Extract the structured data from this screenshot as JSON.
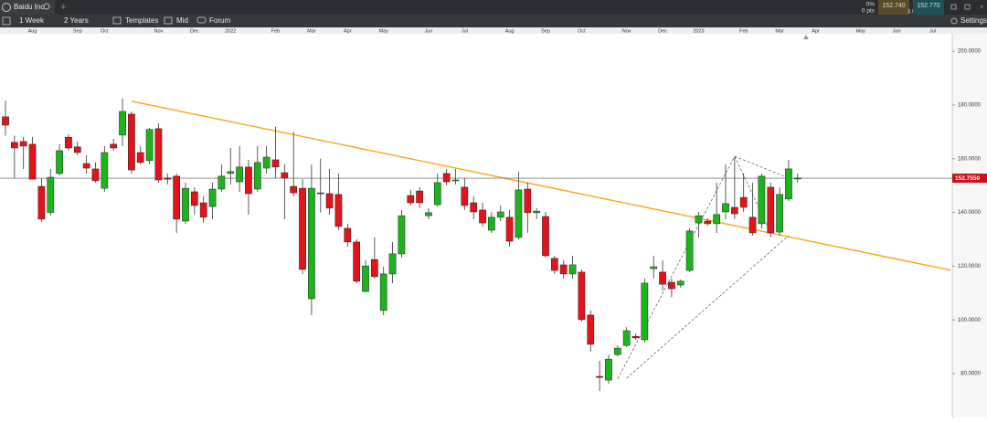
{
  "toolbar": {
    "instrument": "Baidu Inc",
    "interval": "1 Week",
    "range": "2 Years",
    "templates": "Templates",
    "price_mode": "Mid",
    "forum": "Forum",
    "settings": "Settings",
    "change_pct": "0%",
    "change_pts": "0 pts",
    "bid": "152.740",
    "spread": "3.0",
    "ask": "152.770"
  },
  "chart_data": {
    "type": "candlestick",
    "categories": [
      null,
      null,
      null,
      "Aug",
      null,
      null,
      null,
      null,
      "Sep",
      null,
      null,
      "Oct",
      null,
      null,
      null,
      null,
      null,
      "Nov",
      null,
      null,
      null,
      "Dec",
      null,
      null,
      null,
      "2022",
      null,
      null,
      null,
      null,
      "Feb",
      null,
      null,
      null,
      "Mar",
      null,
      null,
      null,
      "Apr",
      null,
      null,
      null,
      "May",
      null,
      null,
      null,
      null,
      "Jun",
      null,
      null,
      null,
      "Jul",
      null,
      null,
      null,
      null,
      "Aug",
      null,
      null,
      null,
      "Sep",
      null,
      null,
      null,
      "Oct",
      null,
      null,
      null,
      null,
      "Nov",
      null,
      null,
      null,
      "Dec",
      null,
      null,
      null,
      "2023",
      null,
      null,
      null,
      null,
      "Feb",
      null,
      null,
      null,
      "Mar",
      null,
      null,
      null,
      "Apr",
      null,
      null,
      null,
      null,
      "May",
      null,
      null,
      null,
      "Jun",
      null,
      null,
      null,
      "Jul",
      null,
      null
    ],
    "open": [
      175.6,
      166.1,
      166.4,
      165.4,
      149.7,
      140.0,
      154.5,
      168.0,
      164.4,
      158.2,
      156.2,
      149.0,
      165.4,
      168.8,
      176.6,
      162.3,
      159.3,
      171.2,
      152.8,
      153.5,
      136.8,
      147.7,
      143.6,
      142.2,
      148.7,
      154.5,
      151.4,
      156.9,
      148.7,
      156.5,
      159.6,
      154.8,
      149.7,
      149.0,
      107.9,
      147.3,
      147.0,
      146.7,
      134.1,
      129.0,
      110.6,
      122.5,
      103.5,
      117.1,
      124.6,
      146.3,
      148.0,
      138.8,
      142.9,
      154.5,
      151.8,
      149.4,
      143.6,
      140.9,
      133.4,
      138.2,
      138.2,
      130.7,
      148.7,
      139.9,
      138.5,
      122.9,
      120.5,
      117.1,
      117.8,
      101.8,
      79.0,
      77.6,
      87.1,
      90.5,
      93.9,
      92.6,
      119.1,
      117.8,
      114.0,
      113.0,
      118.4,
      136.1,
      136.8,
      135.8,
      140.2,
      141.9,
      145.6,
      138.2,
      135.8,
      149.4,
      132.7,
      145.0,
      152.8,
      null,
      null,
      null,
      null,
      null,
      null,
      null,
      null,
      null,
      null,
      null,
      null,
      null,
      null,
      null,
      null,
      null
    ],
    "high": [
      181.7,
      168.6,
      168.1,
      168.1,
      152.8,
      156.2,
      165.4,
      169.1,
      166.4,
      161.3,
      158.6,
      164.7,
      167.4,
      182.4,
      177.6,
      164.7,
      171.5,
      173.2,
      154.5,
      154.5,
      151.1,
      149.4,
      146.0,
      151.1,
      157.9,
      164.0,
      164.7,
      159.6,
      164.7,
      164.7,
      171.9,
      157.9,
      170.0,
      152.4,
      157.9,
      160.0,
      156.2,
      154.5,
      135.8,
      130.0,
      122.2,
      130.7,
      119.8,
      129.0,
      140.9,
      148.4,
      149.4,
      141.6,
      154.5,
      156.2,
      156.2,
      152.8,
      146.0,
      143.6,
      140.2,
      142.6,
      140.9,
      155.2,
      151.1,
      141.6,
      140.2,
      123.9,
      122.2,
      123.9,
      118.8,
      103.5,
      84.8,
      87.1,
      90.5,
      97.3,
      95.0,
      115.4,
      123.9,
      122.2,
      115.4,
      115.0,
      134.1,
      140.2,
      137.8,
      151.1,
      157.9,
      160.6,
      154.5,
      151.1,
      154.5,
      151.1,
      149.4,
      159.6,
      154.5,
      null,
      null,
      null,
      null,
      null,
      null,
      null,
      null,
      null,
      null,
      null,
      null,
      null,
      null,
      null,
      null,
      null
    ],
    "low": [
      168.6,
      152.8,
      156.2,
      152.4,
      136.5,
      138.8,
      153.8,
      163.0,
      161.3,
      154.5,
      151.1,
      147.7,
      163.0,
      164.7,
      154.5,
      157.9,
      157.9,
      151.1,
      150.4,
      132.4,
      135.8,
      139.2,
      136.1,
      137.5,
      147.7,
      150.4,
      147.7,
      139.2,
      147.7,
      154.5,
      152.8,
      137.5,
      146.0,
      117.1,
      101.8,
      140.0,
      139.2,
      133.4,
      127.3,
      113.7,
      110.3,
      115.4,
      101.8,
      113.7,
      123.2,
      142.6,
      141.6,
      137.5,
      142.2,
      150.1,
      150.4,
      140.9,
      137.5,
      134.8,
      132.4,
      136.8,
      127.3,
      130.0,
      132.4,
      137.5,
      123.2,
      117.1,
      115.4,
      115.4,
      99.4,
      88.2,
      73.5,
      76.3,
      86.5,
      89.9,
      92.6,
      91.6,
      115.4,
      111.0,
      108.6,
      112.0,
      117.8,
      130.7,
      135.0,
      132.4,
      137.5,
      137.5,
      140.2,
      131.4,
      134.1,
      130.7,
      131.4,
      144.3,
      151.1,
      null,
      null,
      null,
      null,
      null,
      null,
      null,
      null,
      null,
      null,
      null,
      null,
      null,
      null,
      null,
      null,
      null
    ],
    "close": [
      172.5,
      164.0,
      164.7,
      152.4,
      137.5,
      153.1,
      163.0,
      164.0,
      162.3,
      156.5,
      151.8,
      162.3,
      164.0,
      177.6,
      155.8,
      158.6,
      170.9,
      152.1,
      152.4,
      137.5,
      149.0,
      142.6,
      138.2,
      148.7,
      153.5,
      155.2,
      156.9,
      147.0,
      158.6,
      160.6,
      156.9,
      152.8,
      147.3,
      118.8,
      149.0,
      147.0,
      141.6,
      134.8,
      129.0,
      114.4,
      120.1,
      116.1,
      117.1,
      124.6,
      138.8,
      143.6,
      143.6,
      139.9,
      151.1,
      151.4,
      152.1,
      142.6,
      140.2,
      136.1,
      138.2,
      140.2,
      129.3,
      148.4,
      139.9,
      140.5,
      123.9,
      118.4,
      117.1,
      120.5,
      100.1,
      90.9,
      78.6,
      85.4,
      89.5,
      96.0,
      93.3,
      113.7,
      119.8,
      113.3,
      111.6,
      114.4,
      133.1,
      138.8,
      135.8,
      139.2,
      143.3,
      139.5,
      141.9,
      132.4,
      153.5,
      132.4,
      146.7,
      156.2,
      152.8,
      null,
      null,
      null,
      null,
      null,
      null,
      null,
      null,
      null,
      null,
      null,
      null,
      null,
      null,
      null,
      null,
      null
    ],
    "up_color": "#1db31d",
    "down_color": "#e3131b",
    "ylim": [
      63.7,
      206.5
    ],
    "yticks": [
      {
        "value": 80,
        "label": "80.0000"
      },
      {
        "value": 100,
        "label": "100.0000"
      },
      {
        "value": 120,
        "label": "120.0000"
      },
      {
        "value": 140,
        "label": "140.0000"
      },
      {
        "value": 160,
        "label": "160.0000"
      },
      {
        "value": 180,
        "label": "180.0000"
      },
      {
        "value": 200,
        "label": "200.0000"
      }
    ],
    "last_price": {
      "value": 152.755,
      "label": "152.7550"
    },
    "trendlines": [
      {
        "x": [
          14,
          105
        ],
        "y": [
          181.4,
          118.5
        ],
        "color": "#ffa21a",
        "dashed": false
      },
      {
        "x": [
          68,
          81
        ],
        "y": [
          78.0,
          160.9
        ],
        "color": "#555555",
        "dashed": true
      },
      {
        "x": [
          69,
          87
        ],
        "y": [
          78.3,
          131.4
        ],
        "color": "#555555",
        "dashed": true
      },
      {
        "x": [
          81,
          87
        ],
        "y": [
          160.9,
          152.8
        ],
        "color": "#555555",
        "dashed": true
      },
      {
        "x": [
          81,
          85
        ],
        "y": [
          160.9,
          132.4
        ],
        "color": "#555555",
        "dashed": true
      }
    ]
  }
}
